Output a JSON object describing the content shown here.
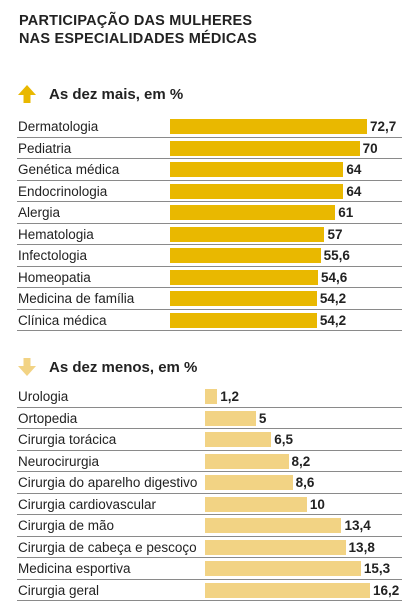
{
  "title_lines": [
    "PARTICIPAÇÃO DAS MULHERES",
    "NAS ESPECIALIDADES MÉDICAS"
  ],
  "colors": {
    "top": "#e9b800",
    "bottom": "#f2d384",
    "rule": "#8a8a8a"
  },
  "chart_data": [
    {
      "type": "bar",
      "orientation": "horizontal",
      "title": "As dez mais, em %",
      "icon": "up-arrow-icon",
      "categories": [
        "Dermatologia",
        "Pediatria",
        "Genética médica",
        "Endocrinologia",
        "Alergia",
        "Hematologia",
        "Infectologia",
        "Homeopatia",
        "Medicina de família",
        "Clínica médica"
      ],
      "values": [
        72.7,
        70,
        64,
        64,
        61,
        57,
        55.6,
        54.6,
        54.2,
        54.2
      ],
      "labels": [
        "72,7",
        "70",
        "64",
        "64",
        "61",
        "57",
        "55,6",
        "54,6",
        "54,2",
        "54,2"
      ],
      "xlim": [
        0,
        72.7
      ]
    },
    {
      "type": "bar",
      "orientation": "horizontal",
      "title": "As dez menos, em %",
      "icon": "down-arrow-icon",
      "categories": [
        "Urologia",
        "Ortopedia",
        "Cirurgia torácica",
        "Neurocirurgia",
        "Cirurgia do aparelho digestivo",
        "Cirurgia cardiovascular",
        "Cirurgia de mão",
        "Cirurgia de cabeça e pescoço",
        "Medicina esportiva",
        "Cirurgia geral"
      ],
      "values": [
        1.2,
        5,
        6.5,
        8.2,
        8.6,
        10,
        13.4,
        13.8,
        15.3,
        16.2
      ],
      "labels": [
        "1,2",
        "5",
        "6,5",
        "8,2",
        "8,6",
        "10",
        "13,4",
        "13,8",
        "15,3",
        "16,2"
      ],
      "xlim": [
        0,
        16.2
      ]
    }
  ]
}
